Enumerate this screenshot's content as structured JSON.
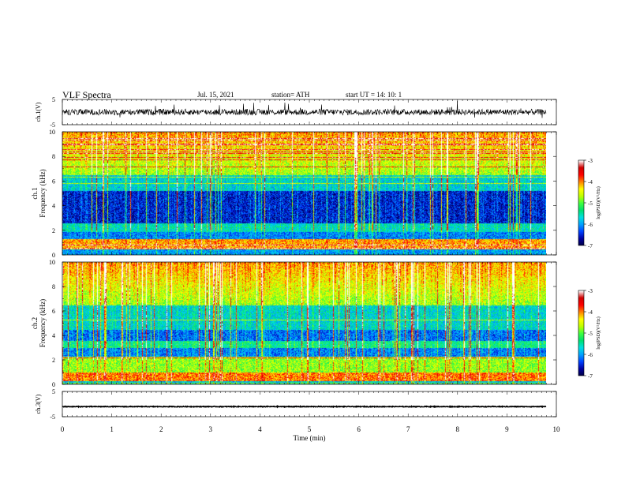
{
  "header": {
    "title": "VLF  Spectra",
    "date": "Jul.  15,  2021",
    "station": "station= ATH",
    "start": "start  UT  =    14: 10: 1"
  },
  "chart_data": [
    {
      "type": "line",
      "panel": "ch1-waveform",
      "ylabel": "ch.1(V)",
      "ylim": [
        -5,
        5
      ],
      "yticks": [
        "5",
        "-5"
      ],
      "xlim": [
        0,
        10
      ],
      "trace_level_v": 0.0,
      "trace_noise_v": 1.2
    },
    {
      "type": "heatmap",
      "panel": "ch1-spectrogram",
      "ylabel": "ch.1\nFrequency  (kHz)",
      "ylim": [
        0,
        10
      ],
      "yticks": [
        "0",
        "2",
        "4",
        "6",
        "8",
        "10"
      ],
      "xlim": [
        0,
        10
      ],
      "colorbar": {
        "label": "log(PSD)(V²/Hz)",
        "range": [
          -7,
          -3
        ],
        "ticks": [
          "-3",
          "-4",
          "-5",
          "-6",
          "-7"
        ]
      }
    },
    {
      "type": "heatmap",
      "panel": "ch2-spectrogram",
      "ylabel": "ch.2\nFrequency  (kHz)",
      "ylim": [
        0,
        10
      ],
      "yticks": [
        "0",
        "2",
        "4",
        "6",
        "8",
        "10"
      ],
      "xlim": [
        0,
        10
      ],
      "colorbar": {
        "label": "log(PSD)(V²/Hz)",
        "range": [
          -7,
          -3
        ],
        "ticks": [
          "-3",
          "-4",
          "-5",
          "-6",
          "-7"
        ]
      }
    },
    {
      "type": "line",
      "panel": "ch3-waveform",
      "ylabel": "ch.3(V)",
      "ylim": [
        -5,
        5
      ],
      "yticks": [
        "5",
        "-5"
      ],
      "xlim": [
        0,
        10
      ],
      "trace_level_v": -1.0,
      "trace_noise_v": 0.15
    }
  ],
  "x_axis": {
    "label": "Time  (min)",
    "ticks": [
      "0",
      "1",
      "2",
      "3",
      "4",
      "5",
      "6",
      "7",
      "8",
      "9",
      "10"
    ],
    "data_end_min": 9.8
  },
  "colormap": [
    "#000040",
    "#0000a0",
    "#0040ff",
    "#00a0ff",
    "#00e0e0",
    "#00e070",
    "#40ff40",
    "#c0ff00",
    "#ffff00",
    "#ff8000",
    "#ff0000",
    "#d00000",
    "#ffffff"
  ]
}
